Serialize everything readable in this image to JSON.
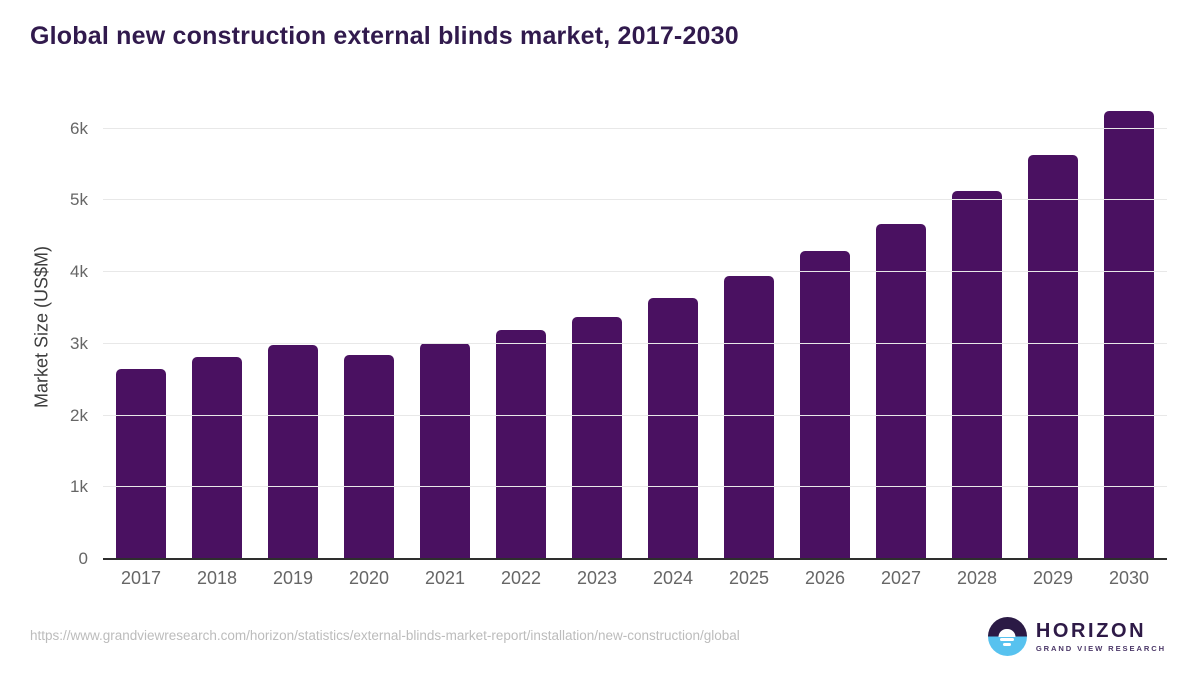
{
  "title": "Global new construction external blinds market, 2017-2030",
  "chart_data": {
    "type": "bar",
    "title": "Global new construction external blinds market, 2017-2030",
    "categories": [
      "2017",
      "2018",
      "2019",
      "2020",
      "2021",
      "2022",
      "2023",
      "2024",
      "2025",
      "2026",
      "2027",
      "2028",
      "2029",
      "2030"
    ],
    "values": [
      2650,
      2820,
      2990,
      2850,
      3010,
      3190,
      3380,
      3640,
      3940,
      4290,
      4670,
      5130,
      5640,
      6250
    ],
    "xlabel": "",
    "ylabel": "Market Size (US$M)",
    "ylim": [
      0,
      6470
    ],
    "yticks": [
      {
        "value": 0,
        "label": "0"
      },
      {
        "value": 1000,
        "label": "1k"
      },
      {
        "value": 2000,
        "label": "2k"
      },
      {
        "value": 3000,
        "label": "3k"
      },
      {
        "value": 4000,
        "label": "4k"
      },
      {
        "value": 5000,
        "label": "5k"
      },
      {
        "value": 6000,
        "label": "6k"
      }
    ],
    "grid": true,
    "legend": "none",
    "bar_color": "#4a1161"
  },
  "colors": {
    "title": "#311a4d",
    "bar": "#4a1161",
    "tick_label": "#666666",
    "gridline": "#e8e8e8",
    "axis_line": "#2e2e2e",
    "footer_text": "#bcbcbc"
  },
  "footer": {
    "source_url": "https://www.grandviewresearch.com/horizon/statistics/external-blinds-market-report/installation/new-construction/global",
    "logo": {
      "name": "HORIZON",
      "subtitle": "GRAND VIEW RESEARCH"
    }
  }
}
